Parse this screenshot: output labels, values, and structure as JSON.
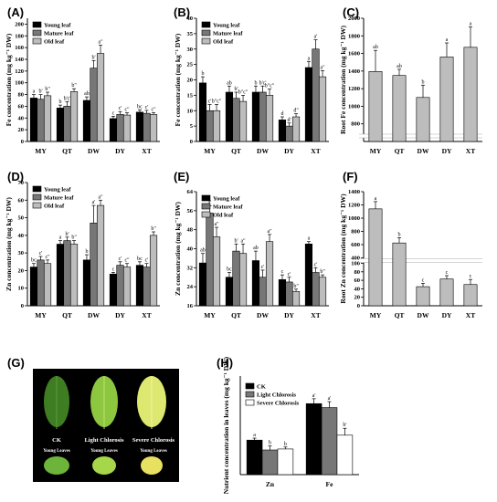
{
  "colors": {
    "black": "#000000",
    "dark": "#777777",
    "light": "#bdbdbd",
    "white": "#ffffff"
  },
  "panel_labels": [
    "(A)",
    "(B)",
    "(C)",
    "(D)",
    "(E)",
    "(F)",
    "(G)",
    "(H)"
  ],
  "photo": {
    "labels": [
      "CK",
      "Light Chlorosis",
      "Severe Chlorosis"
    ],
    "sublabels": [
      "Young Leaves",
      "Young Leaves",
      "Young Leaves"
    ]
  },
  "chart_data": [
    {
      "id": "A",
      "type": "bar",
      "categories": [
        "MY",
        "QT",
        "DW",
        "DY",
        "XT"
      ],
      "ylabel": "Fe concentration (mg kg⁻¹ DW)",
      "ylim": [
        0,
        210
      ],
      "yticks": [
        0,
        20,
        40,
        60,
        80,
        100,
        120,
        140,
        160,
        180,
        200
      ],
      "legend": [
        "Young leaf",
        "Mature leaf",
        "Old leaf"
      ],
      "series": [
        {
          "name": "Young leaf",
          "values": [
            74,
            57,
            70,
            39,
            50
          ],
          "err": [
            6,
            5,
            6,
            4,
            4
          ],
          "sig": [
            "a",
            "b",
            "ab",
            "c",
            "bc"
          ]
        },
        {
          "name": "Mature leaf",
          "values": [
            72,
            60,
            125,
            46,
            48
          ],
          "err": [
            8,
            8,
            13,
            5,
            5
          ],
          "sig": [
            "b'",
            "b'c'",
            "b'",
            "c'",
            "c'"
          ]
        },
        {
          "name": "Old leaf",
          "values": [
            78,
            85,
            150,
            45,
            46
          ],
          "err": [
            6,
            5,
            14,
            4,
            3
          ],
          "sig": [
            "b\"",
            "b\"",
            "a\"",
            "c\"",
            "c\""
          ]
        }
      ]
    },
    {
      "id": "B",
      "type": "bar",
      "categories": [
        "MY",
        "QT",
        "DW",
        "DY",
        "XT"
      ],
      "ylabel": "Fe concentration (mg kg⁻¹ DW)",
      "ylim": [
        0,
        40
      ],
      "yticks": [
        0,
        5,
        10,
        15,
        20,
        25,
        30,
        35,
        40
      ],
      "legend": [
        "Young leaf",
        "Mature leaf",
        "Old leaf"
      ],
      "series": [
        {
          "name": "Young leaf",
          "values": [
            19,
            16,
            16,
            7,
            24
          ],
          "err": [
            2,
            2,
            2,
            1,
            2
          ],
          "sig": [
            "b",
            "ab",
            "b",
            "d",
            "a"
          ]
        },
        {
          "name": "Mature leaf",
          "values": [
            10,
            14,
            16,
            5,
            30
          ],
          "err": [
            2,
            2,
            2,
            1,
            3
          ],
          "sig": [
            "c'",
            "b'",
            "b'c'",
            "d'",
            "a'"
          ]
        },
        {
          "name": "Old leaf",
          "values": [
            10,
            13,
            15,
            8,
            21
          ],
          "err": [
            2,
            2,
            2,
            1,
            2
          ],
          "sig": [
            "b\"c\"",
            "b\"c\"",
            "b\"c\"",
            "d\"",
            "a\""
          ]
        }
      ]
    },
    {
      "id": "C",
      "type": "bar",
      "categories": [
        "MY",
        "QT",
        "DW",
        "DY",
        "XT"
      ],
      "ylabel": "Root Fe concentration (mg kg⁻¹ DW)",
      "ylim": [
        600,
        2000
      ],
      "yticks": [
        800,
        1000,
        1200,
        1400,
        1600,
        1800,
        2000
      ],
      "series": [
        {
          "name": "",
          "values": [
            1395,
            1350,
            1100,
            1560,
            1670
          ],
          "err": [
            240,
            70,
            140,
            160,
            230
          ],
          "sig": [
            "ab",
            "ab",
            "b",
            "a",
            "a"
          ]
        }
      ]
    },
    {
      "id": "D",
      "type": "bar",
      "categories": [
        "MY",
        "QT",
        "DW",
        "DY",
        "XT"
      ],
      "ylabel": "Zn concentration (mg kg⁻¹ DW)",
      "ylim": [
        0,
        70
      ],
      "yticks": [
        0,
        10,
        20,
        30,
        40,
        50,
        60,
        70
      ],
      "legend": [
        "Young leaf",
        "Mature leaf",
        "Old leaf"
      ],
      "series": [
        {
          "name": "Young leaf",
          "values": [
            22,
            35,
            26,
            18,
            23
          ],
          "err": [
            2,
            2,
            3,
            1,
            2
          ],
          "sig": [
            "bc",
            "a",
            "b",
            "c",
            "bc"
          ]
        },
        {
          "name": "Mature leaf",
          "values": [
            26,
            37,
            47,
            23,
            22
          ],
          "err": [
            2,
            2,
            10,
            2,
            2
          ],
          "sig": [
            "c'",
            "b'",
            "a'",
            "c'",
            "c'"
          ]
        },
        {
          "name": "Old leaf",
          "values": [
            24,
            35,
            57,
            22,
            40
          ],
          "err": [
            2,
            2,
            3,
            2,
            2
          ],
          "sig": [
            "c\"",
            "b\"",
            "a\"",
            "c\"",
            "b\""
          ]
        }
      ]
    },
    {
      "id": "E",
      "type": "bar",
      "categories": [
        "MY",
        "QT",
        "DW",
        "DY",
        "XT"
      ],
      "ylabel": "Zn concentration (mg kg⁻¹ DW)",
      "ylim": [
        16,
        64
      ],
      "yticks": [
        16,
        24,
        32,
        40,
        48,
        56,
        64
      ],
      "legend": [
        "Young leaf",
        "Mature leaf",
        "Old leaf"
      ],
      "series": [
        {
          "name": "Young leaf",
          "values": [
            34,
            28,
            35,
            27,
            42
          ],
          "err": [
            4,
            2,
            4,
            2,
            1
          ],
          "sig": [
            "ab",
            "bc",
            "ab",
            "c",
            "a"
          ]
        },
        {
          "name": "Mature leaf",
          "values": [
            55,
            39,
            28,
            26,
            30
          ],
          "err": [
            3,
            3,
            3,
            2,
            2
          ],
          "sig": [
            "a'",
            "b'",
            "c'",
            "c'",
            "c'"
          ]
        },
        {
          "name": "Old leaf",
          "values": [
            45,
            38,
            43,
            22,
            28
          ],
          "err": [
            4,
            4,
            3,
            1,
            1
          ],
          "sig": [
            "a\"",
            "a\"",
            "a\"",
            "b\"",
            "b\""
          ]
        }
      ]
    },
    {
      "id": "F",
      "type": "bar",
      "categories": [
        "MY",
        "QT",
        "DW",
        "DY",
        "XT"
      ],
      "ylabel": "Root Zn concentration (mg kg⁻¹ DW)",
      "ylim": [
        0,
        1400
      ],
      "yticks": [
        0,
        20,
        40,
        60,
        80,
        100,
        400,
        600,
        800,
        1000,
        1200,
        1400
      ],
      "series": [
        {
          "name": "",
          "values": [
            1140,
            625,
            45,
            63,
            50
          ],
          "err": [
            110,
            80,
            8,
            8,
            12
          ],
          "sig": [
            "a",
            "b",
            "c",
            "c",
            "c"
          ]
        }
      ]
    },
    {
      "id": "H",
      "type": "bar",
      "categories": [
        "Zn",
        "Fe"
      ],
      "ylabel": "Nutrient concentration in leaves (mg kg⁻¹ DW)",
      "ylim": [
        0,
        100
      ],
      "legend": [
        "CK",
        "Light Chlorosis",
        "Severe Chlorosis"
      ],
      "series": [
        {
          "name": "CK",
          "values": [
            35,
            72
          ],
          "err": [
            2,
            5
          ],
          "sig": [
            "a",
            "a'"
          ]
        },
        {
          "name": "Light Chlorosis",
          "values": [
            25,
            68
          ],
          "err": [
            4,
            6
          ],
          "sig": [
            "b",
            "a'"
          ]
        },
        {
          "name": "Severe Chlorosis",
          "values": [
            26,
            40
          ],
          "err": [
            2,
            7
          ],
          "sig": [
            "b",
            "b'"
          ]
        }
      ]
    }
  ]
}
